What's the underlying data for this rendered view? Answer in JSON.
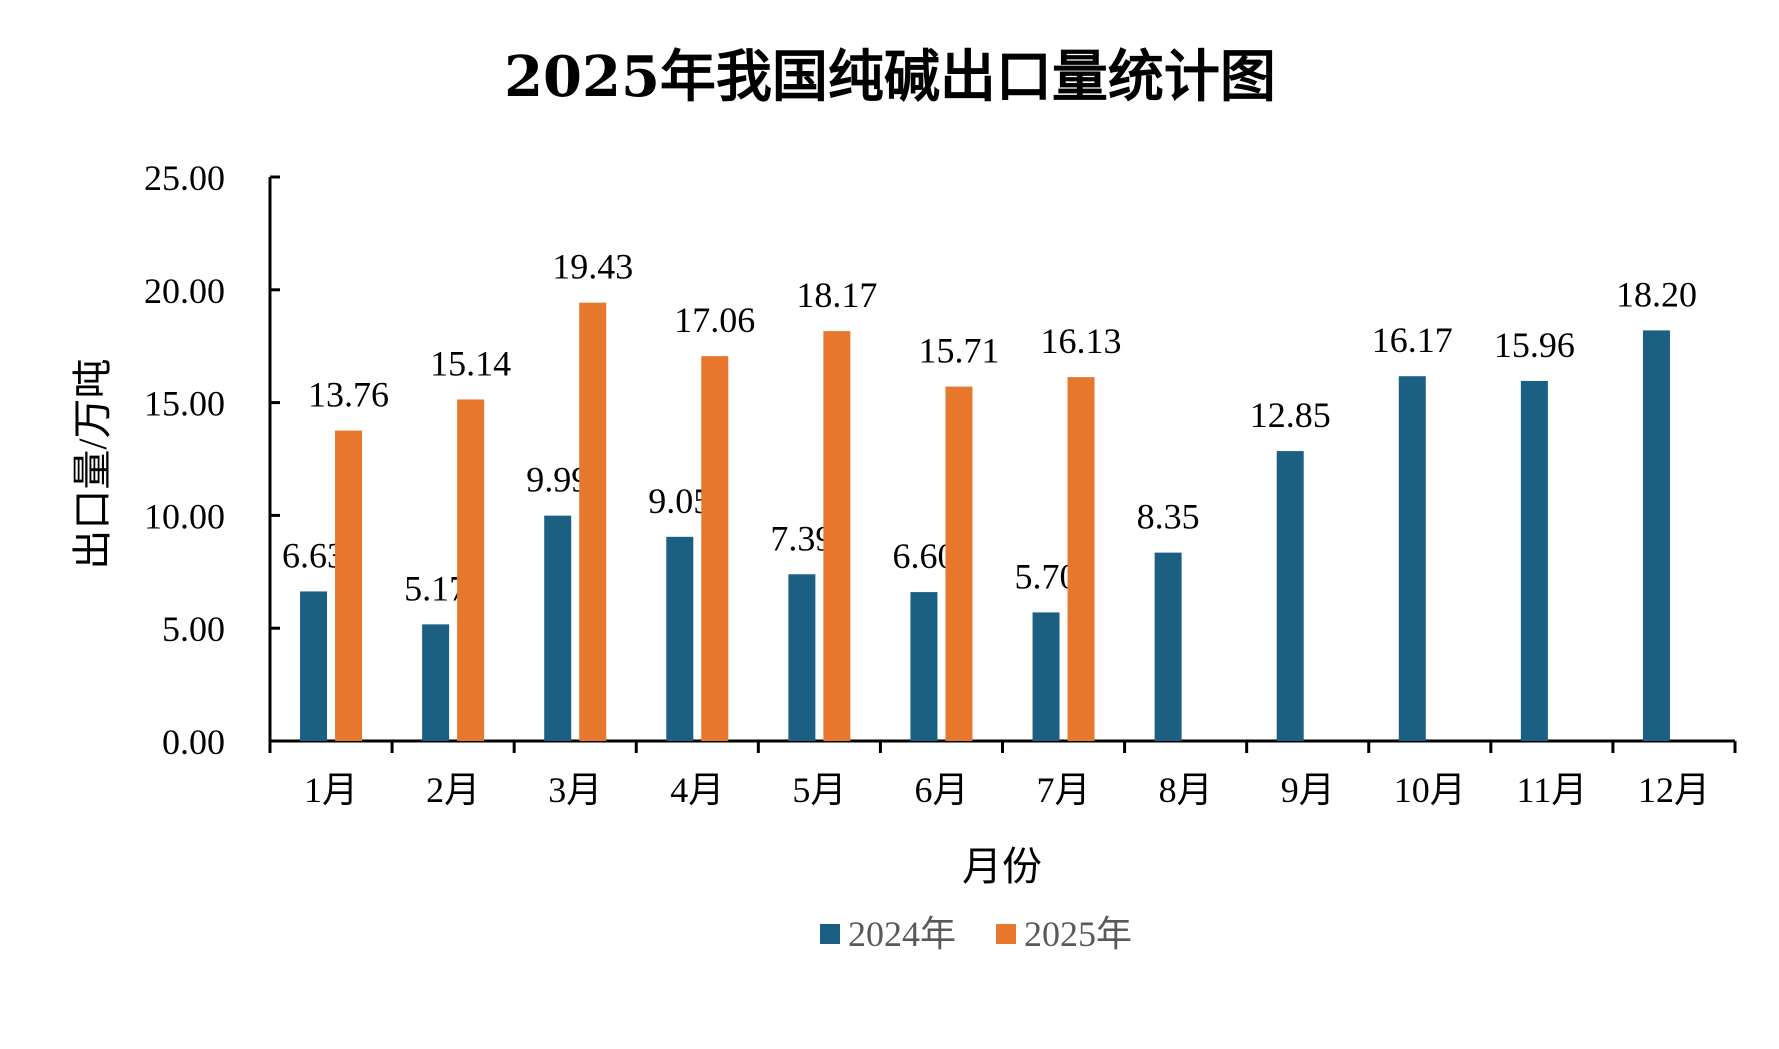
{
  "chart_data": {
    "type": "bar",
    "title": "2025年我国纯碱出口量统计图",
    "xlabel": "月份",
    "ylabel": "出口量/万吨",
    "ylim": [
      0,
      25
    ],
    "yticks": [
      "0.00",
      "5.00",
      "10.00",
      "15.00",
      "20.00",
      "25.00"
    ],
    "categories": [
      "1月",
      "2月",
      "3月",
      "4月",
      "5月",
      "6月",
      "7月",
      "8月",
      "9月",
      "10月",
      "11月",
      "12月"
    ],
    "series": [
      {
        "name": "2024年",
        "color": "#1b5f82",
        "values": [
          6.63,
          5.17,
          9.99,
          9.05,
          7.39,
          6.6,
          5.7,
          8.35,
          12.85,
          16.17,
          15.96,
          18.2
        ],
        "labels": [
          "6.63",
          "5.17",
          "9.99",
          "9.05",
          "7.39",
          "6.60",
          "5.70",
          "8.35",
          "12.85",
          "16.17",
          "15.96",
          "18.20"
        ]
      },
      {
        "name": "2025年",
        "color": "#e8772e",
        "values": [
          13.76,
          15.14,
          19.43,
          17.06,
          18.17,
          15.71,
          16.13,
          null,
          null,
          null,
          null,
          null
        ],
        "labels": [
          "13.76",
          "15.14",
          "19.43",
          "17.06",
          "18.17",
          "15.71",
          "16.13",
          null,
          null,
          null,
          null,
          null
        ]
      }
    ],
    "grid": false,
    "legend": "bottom-center"
  }
}
